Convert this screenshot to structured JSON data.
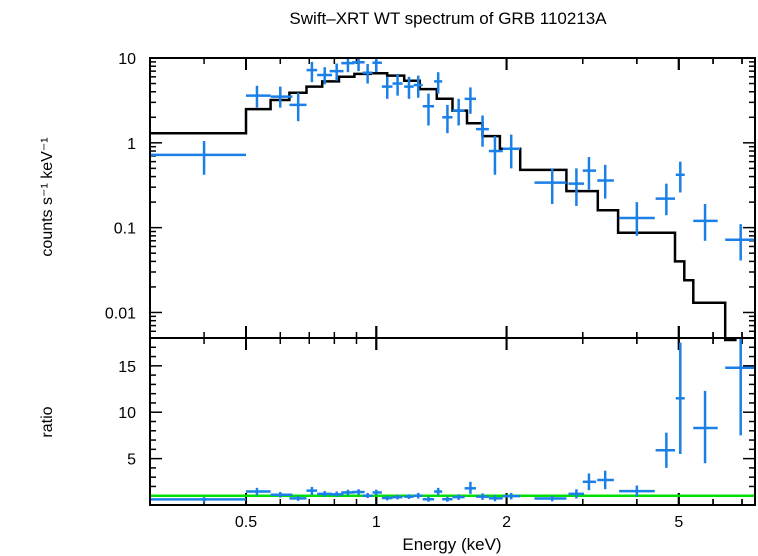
{
  "title": "Swift–XRT WT spectrum of GRB 110213A",
  "xlabel": "Energy (keV)",
  "colors": {
    "data": "#1a7fe6",
    "model": "#000000",
    "unity": "#00e000",
    "frame": "#000000"
  },
  "chart_data": [
    {
      "type": "scatter",
      "panel": "top",
      "ylabel": "counts s⁻¹ keV⁻¹",
      "yscale": "log",
      "ylim": [
        0.005,
        10
      ],
      "xscale": "log",
      "xlim": [
        0.3,
        7.5
      ],
      "yticks": [
        {
          "v": 10,
          "label": "10"
        },
        {
          "v": 1,
          "label": "1"
        },
        {
          "v": 0.1,
          "label": "0.1"
        },
        {
          "v": 0.01,
          "label": "0.01"
        }
      ],
      "series": [
        {
          "kind": "data",
          "points": [
            {
              "x": 0.4,
              "xlo": 0.3,
              "xhi": 0.5,
              "y": 0.72,
              "ylo": 0.42,
              "yhi": 1.05
            },
            {
              "x": 0.53,
              "xlo": 0.5,
              "xhi": 0.57,
              "y": 3.6,
              "ylo": 2.6,
              "yhi": 4.7
            },
            {
              "x": 0.6,
              "xlo": 0.57,
              "xhi": 0.64,
              "y": 3.5,
              "ylo": 2.6,
              "yhi": 4.6
            },
            {
              "x": 0.66,
              "xlo": 0.63,
              "xhi": 0.69,
              "y": 2.8,
              "ylo": 1.8,
              "yhi": 3.9
            },
            {
              "x": 0.71,
              "xlo": 0.69,
              "xhi": 0.73,
              "y": 7.2,
              "ylo": 5.2,
              "yhi": 9.0
            },
            {
              "x": 0.76,
              "xlo": 0.73,
              "xhi": 0.79,
              "y": 6.3,
              "ylo": 4.9,
              "yhi": 7.8
            },
            {
              "x": 0.81,
              "xlo": 0.78,
              "xhi": 0.84,
              "y": 7.0,
              "ylo": 5.4,
              "yhi": 8.6
            },
            {
              "x": 0.86,
              "xlo": 0.83,
              "xhi": 0.89,
              "y": 8.7,
              "ylo": 6.8,
              "yhi": 10.5
            },
            {
              "x": 0.91,
              "xlo": 0.88,
              "xhi": 0.94,
              "y": 8.9,
              "ylo": 7.0,
              "yhi": 10.5
            },
            {
              "x": 0.955,
              "xlo": 0.93,
              "xhi": 0.98,
              "y": 6.7,
              "ylo": 5.0,
              "yhi": 8.5
            },
            {
              "x": 1.0,
              "xlo": 0.98,
              "xhi": 1.03,
              "y": 8.8,
              "ylo": 6.8,
              "yhi": 10.5
            },
            {
              "x": 1.06,
              "xlo": 1.03,
              "xhi": 1.09,
              "y": 4.6,
              "ylo": 3.3,
              "yhi": 6.0
            },
            {
              "x": 1.12,
              "xlo": 1.09,
              "xhi": 1.15,
              "y": 5.0,
              "ylo": 3.6,
              "yhi": 6.5
            },
            {
              "x": 1.19,
              "xlo": 1.16,
              "xhi": 1.22,
              "y": 4.6,
              "ylo": 3.3,
              "yhi": 6.0
            },
            {
              "x": 1.25,
              "xlo": 1.22,
              "xhi": 1.28,
              "y": 4.8,
              "ylo": 3.4,
              "yhi": 6.2
            },
            {
              "x": 1.32,
              "xlo": 1.28,
              "xhi": 1.36,
              "y": 2.7,
              "ylo": 1.6,
              "yhi": 3.8
            },
            {
              "x": 1.39,
              "xlo": 1.36,
              "xhi": 1.42,
              "y": 5.3,
              "ylo": 3.8,
              "yhi": 6.8
            },
            {
              "x": 1.46,
              "xlo": 1.42,
              "xhi": 1.5,
              "y": 2.0,
              "ylo": 1.3,
              "yhi": 2.8
            },
            {
              "x": 1.55,
              "xlo": 1.5,
              "xhi": 1.6,
              "y": 2.4,
              "ylo": 1.6,
              "yhi": 3.3
            },
            {
              "x": 1.65,
              "xlo": 1.6,
              "xhi": 1.7,
              "y": 3.3,
              "ylo": 2.2,
              "yhi": 4.5
            },
            {
              "x": 1.76,
              "xlo": 1.7,
              "xhi": 1.82,
              "y": 1.45,
              "ylo": 0.9,
              "yhi": 2.1
            },
            {
              "x": 1.88,
              "xlo": 1.82,
              "xhi": 1.96,
              "y": 0.8,
              "ylo": 0.42,
              "yhi": 1.2
            },
            {
              "x": 2.05,
              "xlo": 1.96,
              "xhi": 2.15,
              "y": 0.85,
              "ylo": 0.5,
              "yhi": 1.25
            },
            {
              "x": 2.55,
              "xlo": 2.32,
              "xhi": 2.75,
              "y": 0.34,
              "ylo": 0.19,
              "yhi": 0.5
            },
            {
              "x": 2.9,
              "xlo": 2.78,
              "xhi": 3.02,
              "y": 0.33,
              "ylo": 0.18,
              "yhi": 0.5
            },
            {
              "x": 3.1,
              "xlo": 3.0,
              "xhi": 3.22,
              "y": 0.47,
              "ylo": 0.28,
              "yhi": 0.68
            },
            {
              "x": 3.38,
              "xlo": 3.24,
              "xhi": 3.54,
              "y": 0.36,
              "ylo": 0.22,
              "yhi": 0.55
            },
            {
              "x": 4.0,
              "xlo": 3.64,
              "xhi": 4.4,
              "y": 0.13,
              "ylo": 0.08,
              "yhi": 0.2
            },
            {
              "x": 4.68,
              "xlo": 4.42,
              "xhi": 4.9,
              "y": 0.22,
              "ylo": 0.14,
              "yhi": 0.33
            },
            {
              "x": 5.04,
              "xlo": 4.92,
              "xhi": 5.16,
              "y": 0.42,
              "ylo": 0.26,
              "yhi": 0.6
            },
            {
              "x": 5.75,
              "xlo": 5.4,
              "xhi": 6.15,
              "y": 0.12,
              "ylo": 0.07,
              "yhi": 0.19
            },
            {
              "x": 6.95,
              "xlo": 6.4,
              "xhi": 7.5,
              "y": 0.072,
              "ylo": 0.041,
              "yhi": 0.11
            }
          ]
        },
        {
          "kind": "model-step",
          "steps": [
            {
              "x0": 0.3,
              "x1": 0.5,
              "y": 1.3
            },
            {
              "x0": 0.5,
              "x1": 0.57,
              "y": 2.5
            },
            {
              "x0": 0.57,
              "x1": 0.63,
              "y": 3.2
            },
            {
              "x0": 0.63,
              "x1": 0.69,
              "y": 3.9
            },
            {
              "x0": 0.69,
              "x1": 0.75,
              "y": 4.6
            },
            {
              "x0": 0.75,
              "x1": 0.82,
              "y": 5.3
            },
            {
              "x0": 0.82,
              "x1": 0.89,
              "y": 6.0
            },
            {
              "x0": 0.89,
              "x1": 0.97,
              "y": 6.5
            },
            {
              "x0": 0.97,
              "x1": 1.06,
              "y": 6.6
            },
            {
              "x0": 1.06,
              "x1": 1.16,
              "y": 6.2
            },
            {
              "x0": 1.16,
              "x1": 1.26,
              "y": 5.4
            },
            {
              "x0": 1.26,
              "x1": 1.38,
              "y": 4.3
            },
            {
              "x0": 1.38,
              "x1": 1.5,
              "y": 3.3
            },
            {
              "x0": 1.5,
              "x1": 1.62,
              "y": 2.4
            },
            {
              "x0": 1.62,
              "x1": 1.76,
              "y": 1.7
            },
            {
              "x0": 1.76,
              "x1": 1.93,
              "y": 1.2
            },
            {
              "x0": 1.93,
              "x1": 2.15,
              "y": 0.85
            },
            {
              "x0": 2.15,
              "x1": 2.75,
              "y": 0.48
            },
            {
              "x0": 2.75,
              "x1": 3.25,
              "y": 0.27
            },
            {
              "x0": 3.25,
              "x1": 3.62,
              "y": 0.16
            },
            {
              "x0": 3.62,
              "x1": 4.4,
              "y": 0.087
            },
            {
              "x0": 4.4,
              "x1": 4.9,
              "y": 0.087
            },
            {
              "x0": 4.9,
              "x1": 5.15,
              "y": 0.04
            },
            {
              "x0": 5.15,
              "x1": 5.4,
              "y": 0.024
            },
            {
              "x0": 5.4,
              "x1": 6.4,
              "y": 0.013
            },
            {
              "x0": 6.4,
              "x1": 6.8,
              "y": 0.003
            }
          ]
        }
      ]
    },
    {
      "type": "scatter",
      "panel": "bottom",
      "ylabel": "ratio",
      "yscale": "linear",
      "ylim": [
        0,
        18
      ],
      "xscale": "log",
      "xlim": [
        0.3,
        7.5
      ],
      "xticks": [
        {
          "v": 0.5,
          "label": "0.5"
        },
        {
          "v": 1,
          "label": "1"
        },
        {
          "v": 2,
          "label": "2"
        },
        {
          "v": 5,
          "label": "5"
        }
      ],
      "yticks": [
        {
          "v": 5,
          "label": "5"
        },
        {
          "v": 10,
          "label": "10"
        },
        {
          "v": 15,
          "label": "15"
        }
      ],
      "reference_line": 1,
      "series": [
        {
          "kind": "data",
          "points": [
            {
              "x": 0.4,
              "xlo": 0.3,
              "xhi": 0.5,
              "y": 0.6,
              "ylo": 0.3,
              "yhi": 0.85
            },
            {
              "x": 0.53,
              "xlo": 0.5,
              "xhi": 0.57,
              "y": 1.45,
              "ylo": 1.05,
              "yhi": 1.85
            },
            {
              "x": 0.6,
              "xlo": 0.57,
              "xhi": 0.64,
              "y": 1.1,
              "ylo": 0.8,
              "yhi": 1.4
            },
            {
              "x": 0.66,
              "xlo": 0.63,
              "xhi": 0.69,
              "y": 0.72,
              "ylo": 0.45,
              "yhi": 1.0
            },
            {
              "x": 0.71,
              "xlo": 0.69,
              "xhi": 0.73,
              "y": 1.55,
              "ylo": 1.1,
              "yhi": 1.95
            },
            {
              "x": 0.76,
              "xlo": 0.73,
              "xhi": 0.79,
              "y": 1.2,
              "ylo": 0.9,
              "yhi": 1.5
            },
            {
              "x": 0.81,
              "xlo": 0.78,
              "xhi": 0.84,
              "y": 1.15,
              "ylo": 0.9,
              "yhi": 1.45
            },
            {
              "x": 0.86,
              "xlo": 0.83,
              "xhi": 0.89,
              "y": 1.35,
              "ylo": 1.05,
              "yhi": 1.65
            },
            {
              "x": 0.91,
              "xlo": 0.88,
              "xhi": 0.94,
              "y": 1.4,
              "ylo": 1.1,
              "yhi": 1.7
            },
            {
              "x": 0.955,
              "xlo": 0.93,
              "xhi": 0.98,
              "y": 1.0,
              "ylo": 0.75,
              "yhi": 1.3
            },
            {
              "x": 1.0,
              "xlo": 0.98,
              "xhi": 1.03,
              "y": 1.35,
              "ylo": 1.05,
              "yhi": 1.65
            },
            {
              "x": 1.06,
              "xlo": 1.03,
              "xhi": 1.09,
              "y": 0.75,
              "ylo": 0.5,
              "yhi": 1.0
            },
            {
              "x": 1.12,
              "xlo": 1.09,
              "xhi": 1.15,
              "y": 0.85,
              "ylo": 0.6,
              "yhi": 1.1
            },
            {
              "x": 1.19,
              "xlo": 1.16,
              "xhi": 1.22,
              "y": 0.9,
              "ylo": 0.65,
              "yhi": 1.15
            },
            {
              "x": 1.25,
              "xlo": 1.22,
              "xhi": 1.28,
              "y": 1.0,
              "ylo": 0.7,
              "yhi": 1.3
            },
            {
              "x": 1.32,
              "xlo": 1.28,
              "xhi": 1.36,
              "y": 0.62,
              "ylo": 0.35,
              "yhi": 0.9
            },
            {
              "x": 1.39,
              "xlo": 1.36,
              "xhi": 1.42,
              "y": 1.45,
              "ylo": 1.05,
              "yhi": 1.85
            },
            {
              "x": 1.46,
              "xlo": 1.42,
              "xhi": 1.5,
              "y": 0.62,
              "ylo": 0.35,
              "yhi": 0.9
            },
            {
              "x": 1.55,
              "xlo": 1.5,
              "xhi": 1.6,
              "y": 0.85,
              "ylo": 0.55,
              "yhi": 1.15
            },
            {
              "x": 1.65,
              "xlo": 1.6,
              "xhi": 1.7,
              "y": 1.8,
              "ylo": 1.2,
              "yhi": 2.5
            },
            {
              "x": 1.76,
              "xlo": 1.7,
              "xhi": 1.82,
              "y": 0.9,
              "ylo": 0.55,
              "yhi": 1.25
            },
            {
              "x": 1.88,
              "xlo": 1.82,
              "xhi": 1.96,
              "y": 0.72,
              "ylo": 0.4,
              "yhi": 1.05
            },
            {
              "x": 2.05,
              "xlo": 1.96,
              "xhi": 2.15,
              "y": 0.95,
              "ylo": 0.6,
              "yhi": 1.3
            },
            {
              "x": 2.55,
              "xlo": 2.32,
              "xhi": 2.75,
              "y": 0.7,
              "ylo": 0.4,
              "yhi": 1.0
            },
            {
              "x": 2.9,
              "xlo": 2.78,
              "xhi": 3.02,
              "y": 1.2,
              "ylo": 0.7,
              "yhi": 1.7
            },
            {
              "x": 3.1,
              "xlo": 3.0,
              "xhi": 3.22,
              "y": 2.5,
              "ylo": 1.6,
              "yhi": 3.4
            },
            {
              "x": 3.38,
              "xlo": 3.24,
              "xhi": 3.54,
              "y": 2.7,
              "ylo": 1.7,
              "yhi": 3.7
            },
            {
              "x": 4.0,
              "xlo": 3.64,
              "xhi": 4.4,
              "y": 1.5,
              "ylo": 0.9,
              "yhi": 2.1
            },
            {
              "x": 4.68,
              "xlo": 4.42,
              "xhi": 4.9,
              "y": 5.9,
              "ylo": 4.0,
              "yhi": 7.8
            },
            {
              "x": 5.04,
              "xlo": 4.92,
              "xhi": 5.16,
              "y": 11.5,
              "ylo": 5.5,
              "yhi": 17.5
            },
            {
              "x": 5.75,
              "xlo": 5.4,
              "xhi": 6.15,
              "y": 8.3,
              "ylo": 4.5,
              "yhi": 12.3
            },
            {
              "x": 6.95,
              "xlo": 6.4,
              "xhi": 7.5,
              "y": 14.8,
              "ylo": 7.5,
              "yhi": 18.0
            }
          ]
        }
      ]
    }
  ]
}
